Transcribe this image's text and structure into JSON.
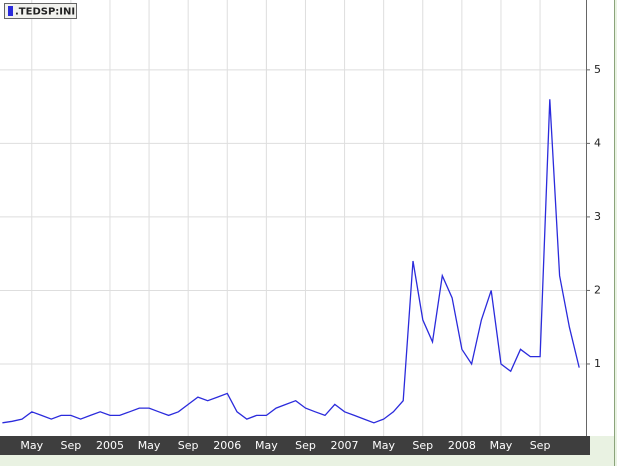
{
  "chart_data": {
    "type": "line",
    "legend": ".TEDSP:INI",
    "x": [
      "2004-02",
      "2004-03",
      "2004-04",
      "2004-05",
      "2004-06",
      "2004-07",
      "2004-08",
      "2004-09",
      "2004-10",
      "2004-11",
      "2004-12",
      "2005-01",
      "2005-02",
      "2005-03",
      "2005-04",
      "2005-05",
      "2005-06",
      "2005-07",
      "2005-08",
      "2005-09",
      "2005-10",
      "2005-11",
      "2005-12",
      "2006-01",
      "2006-02",
      "2006-03",
      "2006-04",
      "2006-05",
      "2006-06",
      "2006-07",
      "2006-08",
      "2006-09",
      "2006-10",
      "2006-11",
      "2006-12",
      "2007-01",
      "2007-02",
      "2007-03",
      "2007-04",
      "2007-05",
      "2007-06",
      "2007-07",
      "2007-08",
      "2007-09",
      "2007-10",
      "2007-11",
      "2007-12",
      "2008-01",
      "2008-02",
      "2008-03",
      "2008-04",
      "2008-05",
      "2008-06",
      "2008-07",
      "2008-08",
      "2008-09",
      "2008-10",
      "2008-11",
      "2008-12",
      "2009-01"
    ],
    "series": [
      {
        "name": ".TEDSP:INI",
        "color": "#2b2bdc",
        "values": [
          0.2,
          0.22,
          0.25,
          0.35,
          0.3,
          0.25,
          0.3,
          0.3,
          0.25,
          0.3,
          0.35,
          0.3,
          0.3,
          0.35,
          0.4,
          0.4,
          0.35,
          0.3,
          0.35,
          0.45,
          0.55,
          0.5,
          0.55,
          0.6,
          0.35,
          0.25,
          0.3,
          0.3,
          0.4,
          0.45,
          0.5,
          0.4,
          0.35,
          0.3,
          0.45,
          0.35,
          0.3,
          0.25,
          0.2,
          0.25,
          0.35,
          0.5,
          2.4,
          1.6,
          1.3,
          2.2,
          1.9,
          1.2,
          1.0,
          1.6,
          2.0,
          1.0,
          0.9,
          1.2,
          1.1,
          1.1,
          4.6,
          2.2,
          1.5,
          0.95
        ]
      }
    ],
    "xlim": [
      "2004-02",
      "2009-01"
    ],
    "xticks": [
      {
        "value": "2004-05",
        "label": "May"
      },
      {
        "value": "2004-09",
        "label": "Sep"
      },
      {
        "value": "2005-01",
        "label": "2005"
      },
      {
        "value": "2005-05",
        "label": "May"
      },
      {
        "value": "2005-09",
        "label": "Sep"
      },
      {
        "value": "2006-01",
        "label": "2006"
      },
      {
        "value": "2006-05",
        "label": "May"
      },
      {
        "value": "2006-09",
        "label": "Sep"
      },
      {
        "value": "2007-01",
        "label": "2007"
      },
      {
        "value": "2007-05",
        "label": "May"
      },
      {
        "value": "2007-09",
        "label": "Sep"
      },
      {
        "value": "2008-01",
        "label": "2008"
      },
      {
        "value": "2008-05",
        "label": "May"
      },
      {
        "value": "2008-09",
        "label": "Sep"
      }
    ],
    "ylim": [
      0,
      5.95
    ],
    "yticks": [
      1,
      2,
      3,
      4,
      5
    ],
    "grid": true
  }
}
